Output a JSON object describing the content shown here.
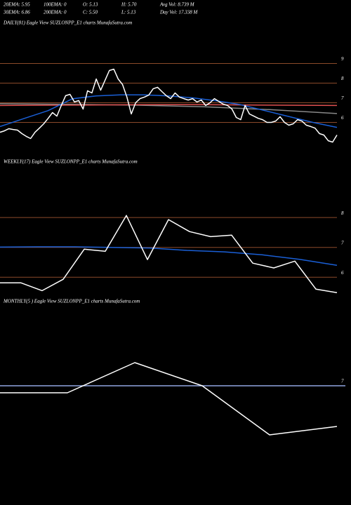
{
  "header": {
    "rows": [
      [
        "20EMA: 5.95",
        "100EMA: 0",
        "O: 5.13",
        "H: 5.70",
        "Avg Vol: 8.739 M"
      ],
      [
        "30EMA: 6.86",
        "200EMA: 0",
        "C: 5.50",
        "L: 5.13",
        "Day Vol: 17.338 M"
      ]
    ]
  },
  "chart_data": [
    {
      "type": "line",
      "title": "DAILY(81) Eagle  View  SUZLONPP_E1 charts MunafaSutra.com",
      "ylim": [
        4.2,
        10.8
      ],
      "yticks": [
        6,
        7,
        8,
        9
      ],
      "series": [
        {
          "color": "#888888",
          "values": [
            6.95,
            6.92,
            6.88,
            6.8,
            6.65,
            6.45
          ]
        },
        {
          "color": "#e05050",
          "values": [
            6.86,
            6.88,
            6.9,
            6.9,
            6.88,
            6.86
          ]
        },
        {
          "color": "#1a5fd6",
          "values": [
            5.79,
            6.2,
            6.6,
            7.2,
            7.35,
            7.4,
            7.4,
            7.35,
            7.25,
            7.1,
            6.9,
            6.6,
            6.3,
            6.0,
            5.75
          ]
        },
        {
          "color": "#ffffff",
          "values": [
            5.5,
            5.57,
            5.68,
            5.64,
            5.61,
            5.43,
            5.29,
            5.18,
            5.5,
            5.71,
            5.93,
            6.21,
            6.5,
            6.32,
            6.86,
            7.36,
            7.43,
            7.04,
            7.11,
            6.68,
            7.61,
            7.5,
            8.21,
            7.64,
            8.14,
            8.64,
            8.71,
            8.21,
            7.93,
            7.29,
            6.43,
            7.0,
            7.21,
            7.29,
            7.39,
            7.71,
            7.79,
            7.57,
            7.36,
            7.21,
            7.5,
            7.29,
            7.21,
            7.14,
            7.21,
            7.04,
            7.14,
            6.86,
            7.0,
            7.21,
            7.07,
            6.93,
            6.86,
            6.68,
            6.25,
            6.14,
            6.86,
            6.43,
            6.32,
            6.21,
            6.14,
            6.0,
            6.0,
            6.07,
            6.29,
            6.0,
            5.86,
            5.93,
            6.14,
            6.07,
            5.86,
            5.79,
            5.71,
            5.43,
            5.36,
            5.07,
            5.0,
            5.36
          ]
        }
      ]
    },
    {
      "type": "line",
      "title": "WEEKLY(17) Eagle  View  SUZLONPP_E1 charts MunafaSutra.com",
      "ylim": [
        5.3,
        9.65
      ],
      "yticks": [
        6,
        7,
        8
      ],
      "series": [
        {
          "color": "#1a5fd6",
          "values": [
            7.01,
            7.02,
            7.02,
            7.0,
            6.98,
            6.9,
            6.85,
            6.75,
            6.6,
            6.4
          ]
        },
        {
          "color": "#ffffff",
          "values": [
            5.81,
            5.81,
            5.55,
            5.93,
            6.94,
            6.87,
            8.07,
            6.59,
            7.93,
            7.53,
            7.36,
            7.41,
            6.47,
            6.31,
            6.54,
            5.6,
            5.48
          ]
        }
      ]
    },
    {
      "type": "line",
      "title": "MONTHLY(5         ) Eagle  View  SUZLONPP_E1 charts MunafaSutra.com",
      "ylim": [
        3.8,
        9.2
      ],
      "yticks": [
        7
      ],
      "series": [
        {
          "color": "#8fa6e0",
          "values": [
            7,
            7
          ]
        },
        {
          "color": "#ffffff",
          "values": [
            6.8,
            6.8,
            7.66,
            7.0,
            5.6,
            5.84
          ]
        }
      ]
    }
  ]
}
